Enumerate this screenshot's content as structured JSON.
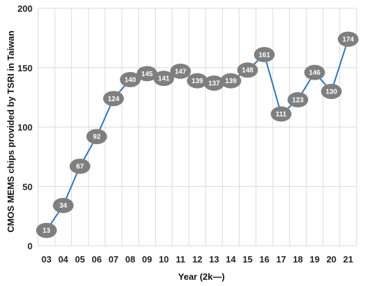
{
  "chart_data": {
    "type": "line",
    "categories": [
      "03",
      "04",
      "05",
      "06",
      "07",
      "08",
      "09",
      "10",
      "11",
      "12",
      "13",
      "14",
      "15",
      "16",
      "17",
      "18",
      "19",
      "20",
      "21"
    ],
    "series": [
      {
        "values": [
          13,
          34,
          67,
          92,
          124,
          140,
          145,
          141,
          147,
          139,
          137,
          139,
          148,
          161,
          111,
          123,
          146,
          130,
          174
        ]
      }
    ],
    "xlabel": "Year (2k—)",
    "ylabel": "CMOS MEMS chips provided by TSRI in Taiwan",
    "ylim": [
      0,
      200
    ],
    "yticks": [
      0,
      50,
      100,
      150,
      200
    ],
    "grid": "horizontal-and-vertical",
    "legend": "none",
    "colors": {
      "line": "#2e75b6",
      "marker": "#7f7f7f",
      "grid": "#d9d9d9",
      "label": "#ffffff"
    }
  }
}
